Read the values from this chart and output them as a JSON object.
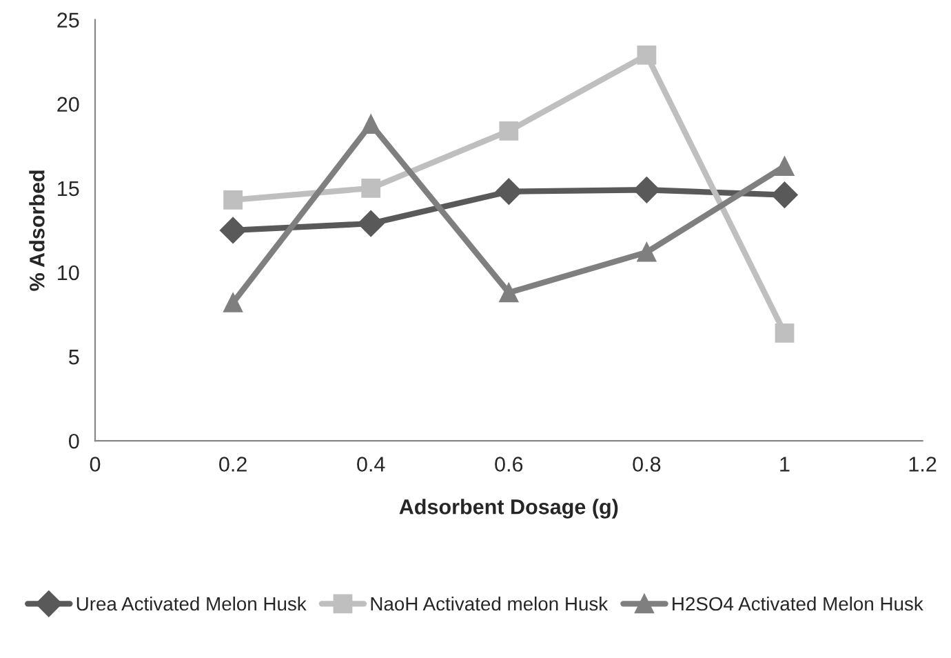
{
  "chart_data": {
    "type": "line",
    "xlabel": "Adsorbent Dosage (g)",
    "ylabel": "% Adsorbed",
    "xlim": [
      0,
      1.2
    ],
    "xticks": [
      0,
      0.2,
      0.4,
      0.6,
      0.8,
      1,
      1.2
    ],
    "ylim": [
      0,
      25
    ],
    "yticks": [
      0,
      5,
      10,
      15,
      20,
      25
    ],
    "x": [
      0.2,
      0.4,
      0.6,
      0.8,
      1
    ],
    "series": [
      {
        "name": "Urea Activated Melon Husk",
        "color": "#595959",
        "marker": "diamond",
        "values": [
          12.5,
          12.9,
          14.8,
          14.9,
          14.6
        ]
      },
      {
        "name": "NaoH Activated melon Husk",
        "color": "#bfbfbf",
        "marker": "square",
        "values": [
          14.3,
          15.0,
          18.4,
          22.9,
          6.4
        ]
      },
      {
        "name": "H2SO4 Activated Melon Husk",
        "color": "#7f7f7f",
        "marker": "triangle",
        "values": [
          8.2,
          18.8,
          8.8,
          11.2,
          16.3
        ]
      }
    ],
    "grid": false,
    "legend": "bottom",
    "line_style": "solid"
  }
}
